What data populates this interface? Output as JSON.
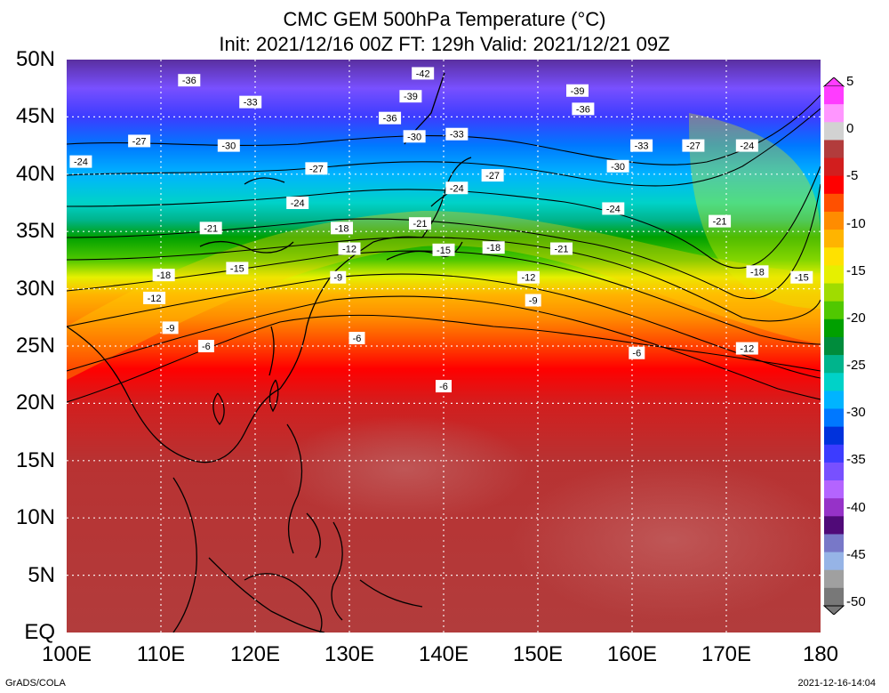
{
  "title": {
    "line1": "CMC GEM 500hPa Temperature (°C)",
    "line2": "Init: 2021/12/16 00Z  FT: 129h  Valid: 2021/12/21 09Z"
  },
  "axes": {
    "lat_labels": [
      "50N",
      "45N",
      "40N",
      "35N",
      "30N",
      "25N",
      "20N",
      "15N",
      "10N",
      "5N",
      "EQ"
    ],
    "lon_labels": [
      "100E",
      "110E",
      "120E",
      "130E",
      "140E",
      "150E",
      "160E",
      "170E",
      "180"
    ],
    "lat_range": [
      0,
      50
    ],
    "lon_range": [
      100,
      180
    ]
  },
  "colorbar": {
    "labels": [
      "5",
      "0",
      "-5",
      "-10",
      "-15",
      "-20",
      "-25",
      "-30",
      "-35",
      "-40",
      "-45",
      "-50"
    ],
    "colors": [
      "#ff3cff",
      "#ff96ff",
      "#d2d2d2",
      "#b23c3c",
      "#d21e1e",
      "#ff0000",
      "#ff5000",
      "#ff8c00",
      "#ffb400",
      "#ffe100",
      "#e6f000",
      "#a0dc00",
      "#50c800",
      "#00a000",
      "#008c3c",
      "#00b48c",
      "#00d2c8",
      "#00b4ff",
      "#0078ff",
      "#0032dc",
      "#3c3cff",
      "#7850ff",
      "#b464ff",
      "#9632c8",
      "#500a78",
      "#7878c8",
      "#96b4e6",
      "#a0a0a0",
      "#787878"
    ]
  },
  "contour_labels": [
    {
      "text": "-42",
      "lon": 137.8,
      "lat": 48.8
    },
    {
      "text": "-36",
      "lon": 113.0,
      "lat": 48.2
    },
    {
      "text": "-39",
      "lon": 136.5,
      "lat": 46.8
    },
    {
      "text": "-39",
      "lon": 154.2,
      "lat": 47.3
    },
    {
      "text": "-33",
      "lon": 119.5,
      "lat": 46.3
    },
    {
      "text": "-36",
      "lon": 154.8,
      "lat": 45.7
    },
    {
      "text": "-36",
      "lon": 134.3,
      "lat": 44.9
    },
    {
      "text": "-30",
      "lon": 136.9,
      "lat": 43.3
    },
    {
      "text": "-33",
      "lon": 141.4,
      "lat": 43.5
    },
    {
      "text": "-27",
      "lon": 107.7,
      "lat": 42.9
    },
    {
      "text": "-30",
      "lon": 117.2,
      "lat": 42.5
    },
    {
      "text": "-33",
      "lon": 161.0,
      "lat": 42.5
    },
    {
      "text": "-27",
      "lon": 166.5,
      "lat": 42.5
    },
    {
      "text": "-24",
      "lon": 172.2,
      "lat": 42.5
    },
    {
      "text": "-24",
      "lon": 101.5,
      "lat": 41.1
    },
    {
      "text": "-27",
      "lon": 126.5,
      "lat": 40.5
    },
    {
      "text": "-30",
      "lon": 158.5,
      "lat": 40.7
    },
    {
      "text": "-27",
      "lon": 145.2,
      "lat": 39.9
    },
    {
      "text": "-24",
      "lon": 141.4,
      "lat": 38.8
    },
    {
      "text": "-24",
      "lon": 124.5,
      "lat": 37.5
    },
    {
      "text": "-24",
      "lon": 158.0,
      "lat": 37.0
    },
    {
      "text": "-21",
      "lon": 115.3,
      "lat": 35.3
    },
    {
      "text": "-18",
      "lon": 129.2,
      "lat": 35.3
    },
    {
      "text": "-21",
      "lon": 137.5,
      "lat": 35.7
    },
    {
      "text": "-21",
      "lon": 169.3,
      "lat": 35.9
    },
    {
      "text": "-12",
      "lon": 130.0,
      "lat": 33.5
    },
    {
      "text": "-15",
      "lon": 140.0,
      "lat": 33.4
    },
    {
      "text": "-18",
      "lon": 145.3,
      "lat": 33.6
    },
    {
      "text": "-21",
      "lon": 152.5,
      "lat": 33.5
    },
    {
      "text": "-15",
      "lon": 118.1,
      "lat": 31.8
    },
    {
      "text": "-18",
      "lon": 110.3,
      "lat": 31.2
    },
    {
      "text": "-9",
      "lon": 128.8,
      "lat": 31.0
    },
    {
      "text": "-12",
      "lon": 149.0,
      "lat": 31.0
    },
    {
      "text": "-18",
      "lon": 173.3,
      "lat": 31.5
    },
    {
      "text": "-15",
      "lon": 178.0,
      "lat": 31.0
    },
    {
      "text": "-12",
      "lon": 109.3,
      "lat": 29.2
    },
    {
      "text": "-9",
      "lon": 149.5,
      "lat": 29.0
    },
    {
      "text": "-9",
      "lon": 111.0,
      "lat": 26.6
    },
    {
      "text": "-6",
      "lon": 114.8,
      "lat": 25.0
    },
    {
      "text": "-6",
      "lon": 130.8,
      "lat": 25.7
    },
    {
      "text": "-6",
      "lon": 160.5,
      "lat": 24.4
    },
    {
      "text": "-12",
      "lon": 172.2,
      "lat": 24.8
    },
    {
      "text": "-6",
      "lon": 140.0,
      "lat": 21.5
    }
  ],
  "footer": {
    "left": "GrADS/COLA",
    "right": "2021-12-16-14:04"
  }
}
